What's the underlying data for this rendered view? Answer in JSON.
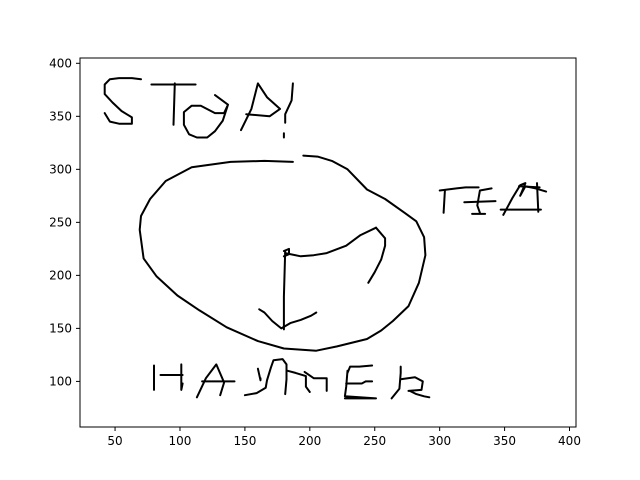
{
  "chart_data": {
    "type": "line",
    "title": "",
    "xlabel": "",
    "ylabel": "",
    "xlim": [
      23,
      405
    ],
    "ylim": [
      57,
      405
    ],
    "x_ticks": [
      50,
      100,
      150,
      200,
      250,
      300,
      350,
      400
    ],
    "y_ticks": [
      100,
      150,
      200,
      250,
      300,
      350,
      400
    ],
    "x_tick_labels": [
      "50",
      "100",
      "150",
      "200",
      "250",
      "300",
      "350",
      "400"
    ],
    "y_tick_labels": [
      "100",
      "150",
      "200",
      "250",
      "300",
      "350",
      "400"
    ],
    "grid": false,
    "legend": "none",
    "series": [
      {
        "values": [
          [
            42,
            353
          ],
          [
            46,
            345
          ],
          [
            53,
            343
          ],
          [
            63,
            343
          ],
          [
            63,
            349
          ],
          [
            55,
            355
          ],
          [
            48,
            363
          ],
          [
            42,
            371
          ],
          [
            42,
            380
          ],
          [
            46,
            385
          ],
          [
            53,
            386
          ],
          [
            63,
            386
          ],
          [
            70,
            385
          ]
        ]
      },
      {
        "values": [
          [
            78,
            380
          ],
          [
            112,
            380
          ]
        ]
      },
      {
        "values": [
          [
            96,
            381
          ],
          [
            95,
            342
          ]
        ]
      },
      {
        "values": [
          [
            127,
            370
          ],
          [
            137,
            361
          ],
          [
            134,
            353
          ],
          [
            127,
            353
          ],
          [
            116,
            360
          ],
          [
            109,
            360
          ],
          [
            103,
            354
          ],
          [
            103,
            342
          ],
          [
            107,
            333
          ],
          [
            113,
            330
          ],
          [
            121,
            330
          ],
          [
            127,
            336
          ],
          [
            133,
            346
          ],
          [
            137,
            361
          ]
        ]
      },
      {
        "values": [
          [
            147,
            337
          ],
          [
            155,
            357
          ],
          [
            160,
            381
          ],
          [
            167,
            368
          ],
          [
            177,
            357
          ],
          [
            169,
            350
          ],
          [
            151,
            352
          ]
        ]
      },
      {
        "values": [
          [
            187,
            381
          ],
          [
            186,
            365
          ],
          [
            181,
            352
          ],
          [
            181,
            344
          ]
        ]
      },
      {
        "values": [
          [
            180,
            330
          ],
          [
            180,
            334
          ]
        ]
      },
      {
        "values": [
          [
            187,
            307
          ],
          [
            165,
            308
          ],
          [
            139,
            307
          ],
          [
            109,
            302
          ],
          [
            89,
            289
          ],
          [
            77,
            272
          ],
          [
            70,
            256
          ],
          [
            69,
            243
          ],
          [
            72,
            216
          ],
          [
            82,
            199
          ],
          [
            98,
            181
          ],
          [
            115,
            167
          ],
          [
            136,
            151
          ],
          [
            160,
            138
          ],
          [
            180,
            131
          ],
          [
            205,
            129
          ],
          [
            221,
            133
          ],
          [
            244,
            140
          ],
          [
            255,
            148
          ],
          [
            264,
            157
          ],
          [
            276,
            171
          ],
          [
            284,
            193
          ],
          [
            289,
            219
          ],
          [
            288,
            236
          ],
          [
            282,
            251
          ],
          [
            273,
            259
          ],
          [
            258,
            272
          ],
          [
            244,
            281
          ],
          [
            229,
            300
          ],
          [
            217,
            308
          ],
          [
            206,
            312
          ],
          [
            195,
            313
          ]
        ]
      },
      {
        "values": [
          [
            245,
            193
          ],
          [
            250,
            203
          ],
          [
            255,
            215
          ],
          [
            258,
            228
          ],
          [
            258,
            235
          ],
          [
            251,
            245
          ]
        ]
      },
      {
        "values": [
          [
            251,
            245
          ],
          [
            239,
            238
          ],
          [
            228,
            228
          ],
          [
            213,
            221
          ],
          [
            203,
            219
          ],
          [
            193,
            218
          ],
          [
            181,
            221
          ]
        ]
      },
      {
        "values": [
          [
            180,
            223
          ],
          [
            184,
            225
          ],
          [
            184,
            220
          ],
          [
            180,
            218
          ]
        ]
      },
      {
        "values": [
          [
            181,
            223
          ],
          [
            180,
            180
          ],
          [
            180,
            149
          ]
        ]
      },
      {
        "values": [
          [
            161,
            168
          ],
          [
            165,
            165
          ],
          [
            171,
            157
          ],
          [
            178,
            150
          ],
          [
            185,
            155
          ],
          [
            193,
            158
          ],
          [
            201,
            162
          ],
          [
            205,
            165
          ]
        ]
      },
      {
        "values": [
          [
            300,
            280
          ],
          [
            313,
            282
          ],
          [
            320,
            283
          ],
          [
            330,
            283
          ]
        ]
      },
      {
        "values": [
          [
            303,
            259
          ],
          [
            304,
            280
          ]
        ]
      },
      {
        "values": [
          [
            325,
            258
          ],
          [
            335,
            258
          ]
        ]
      },
      {
        "values": [
          [
            319,
            269
          ],
          [
            343,
            270
          ]
        ]
      },
      {
        "values": [
          [
            331,
            259
          ],
          [
            329,
            266
          ],
          [
            331,
            280
          ],
          [
            340,
            282
          ]
        ]
      },
      {
        "values": [
          [
            349,
            257
          ],
          [
            356,
            273
          ],
          [
            362,
            285
          ],
          [
            366,
            287
          ],
          [
            362,
            275
          ],
          [
            366,
            284
          ],
          [
            374,
            282
          ],
          [
            382,
            279
          ]
        ]
      },
      {
        "values": [
          [
            347,
            262
          ],
          [
            355,
            262
          ],
          [
            378,
            262
          ]
        ]
      },
      {
        "values": [
          [
            376,
            260
          ],
          [
            375,
            287
          ]
        ]
      },
      {
        "values": [
          [
            361,
            284
          ],
          [
            377,
            283
          ]
        ]
      },
      {
        "values": [
          [
            80,
            92
          ],
          [
            80,
            103
          ],
          [
            80,
            115
          ]
        ]
      },
      {
        "values": [
          [
            85,
            106
          ],
          [
            102,
            106
          ]
        ]
      },
      {
        "values": [
          [
            101,
            116
          ],
          [
            101,
            92
          ],
          [
            102,
            98
          ]
        ]
      },
      {
        "values": [
          [
            113,
            85
          ],
          [
            120,
            103
          ],
          [
            128,
            116
          ],
          [
            134,
            99
          ],
          [
            131,
            87
          ]
        ]
      },
      {
        "values": [
          [
            117,
            100
          ],
          [
            142,
            100
          ]
        ]
      },
      {
        "values": [
          [
            150,
            87
          ],
          [
            159,
            89
          ],
          [
            166,
            94
          ],
          [
            167,
            101
          ],
          [
            170,
            113
          ],
          [
            172,
            120
          ],
          [
            179,
            121
          ],
          [
            182,
            116
          ],
          [
            182,
            102
          ],
          [
            181,
            88
          ]
        ]
      },
      {
        "values": [
          [
            183,
            110
          ],
          [
            189,
            108
          ],
          [
            197,
            105
          ],
          [
            197,
            95
          ],
          [
            200,
            90
          ]
        ]
      },
      {
        "values": [
          [
            160,
            112
          ],
          [
            162,
            101
          ],
          [
            162,
            103
          ]
        ]
      },
      {
        "values": [
          [
            196,
            109
          ],
          [
            203,
            103
          ],
          [
            213,
            103
          ],
          [
            213,
            91
          ]
        ]
      },
      {
        "values": [
          [
            227,
            84
          ],
          [
            241,
            84
          ],
          [
            251,
            84
          ],
          [
            227,
            86
          ],
          [
            228,
            95
          ],
          [
            229,
            110
          ],
          [
            229,
            108
          ],
          [
            231,
            114
          ],
          [
            238,
            114
          ],
          [
            248,
            115
          ]
        ]
      },
      {
        "values": [
          [
            228,
            98
          ],
          [
            240,
            98
          ],
          [
            243,
            100
          ],
          [
            248,
            100
          ]
        ]
      },
      {
        "values": [
          [
            263,
            84
          ],
          [
            269,
            93
          ],
          [
            270,
            108
          ],
          [
            270,
            114
          ]
        ]
      },
      {
        "values": [
          [
            270,
            102
          ],
          [
            281,
            104
          ],
          [
            287,
            100
          ],
          [
            286,
            92
          ],
          [
            276,
            91
          ],
          [
            277,
            91
          ],
          [
            282,
            88
          ],
          [
            288,
            86
          ],
          [
            292,
            85
          ]
        ]
      }
    ]
  }
}
